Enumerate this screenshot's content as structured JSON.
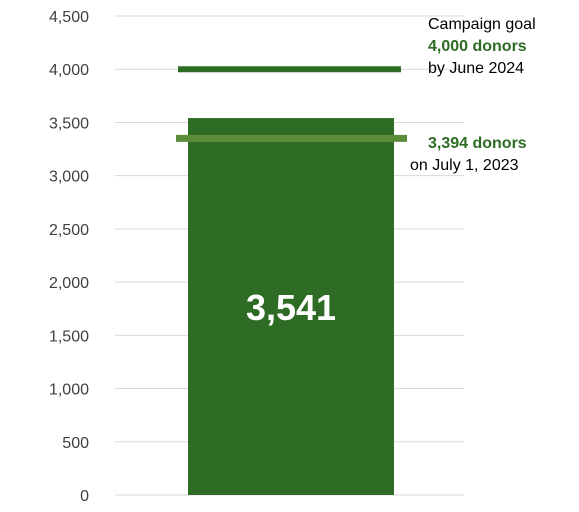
{
  "chart_data": {
    "type": "bar",
    "categories": [
      ""
    ],
    "values": [
      3541
    ],
    "value_label": "3,541",
    "ylim": [
      0,
      4500
    ],
    "yticks": [
      0,
      500,
      1000,
      1500,
      2000,
      2500,
      3000,
      3500,
      4000,
      4500
    ],
    "ytick_labels": [
      "0",
      "500",
      "1,000",
      "1,500",
      "2,000",
      "2,500",
      "3,000",
      "3,500",
      "4,000",
      "4,500"
    ],
    "grid": true,
    "reference_lines": [
      {
        "name": "goal",
        "value": 4000,
        "color": "#2e6b24"
      },
      {
        "name": "baseline",
        "value": 3350,
        "color": "#5b8c3a"
      }
    ],
    "annotations": {
      "goal": {
        "line1": "Campaign goal",
        "line2": "4,000 donors",
        "line3": "by June 2024"
      },
      "current": {
        "line1": "3,394 donors",
        "line2": "on July 1, 2023"
      }
    },
    "colors": {
      "bar": "#2e6b24",
      "goal_line": "#2e6b24",
      "baseline_line": "#5b8c3a",
      "grid": "#d9d9d9",
      "tick_text": "#404040"
    }
  }
}
